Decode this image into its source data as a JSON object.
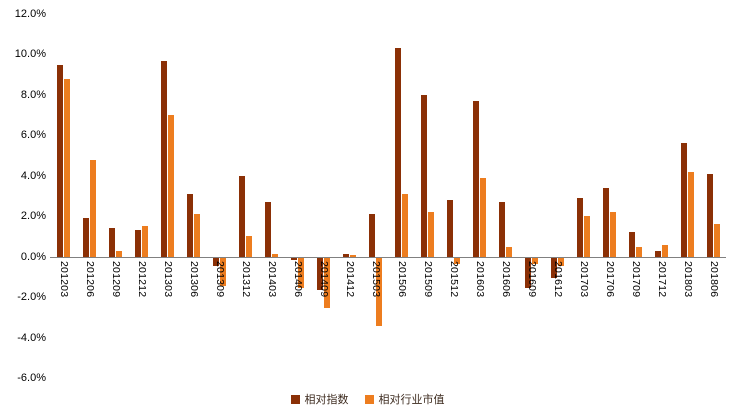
{
  "chart_data": {
    "type": "bar",
    "title": "",
    "xlabel": "",
    "ylabel": "",
    "ylim": [
      -6,
      12
    ],
    "ytick_step": 2,
    "ytick_suffix": "%",
    "grid": false,
    "legend_position": "bottom",
    "categories": [
      "201203",
      "201206",
      "201209",
      "201212",
      "201303",
      "201306",
      "201309",
      "201312",
      "201403",
      "201406",
      "201409",
      "201412",
      "201503",
      "201506",
      "201509",
      "201512",
      "201603",
      "201606",
      "201609",
      "201612",
      "201703",
      "201706",
      "201709",
      "201712",
      "201803",
      "201806"
    ],
    "series": [
      {
        "name": "相对指数",
        "color": "#8B3006",
        "values": [
          9.5,
          1.9,
          1.4,
          1.3,
          9.7,
          3.1,
          -0.4,
          4.0,
          2.7,
          -0.1,
          -1.6,
          0.15,
          2.1,
          10.3,
          8.0,
          2.8,
          7.7,
          2.7,
          -1.5,
          -1.0,
          2.9,
          3.4,
          1.2,
          0.3,
          5.6,
          4.1
        ]
      },
      {
        "name": "相对行业市值",
        "color": "#ED7D1F",
        "values": [
          8.8,
          4.8,
          0.3,
          1.5,
          7.0,
          2.1,
          -1.4,
          1.0,
          0.15,
          -1.5,
          -2.5,
          0.1,
          -3.4,
          3.1,
          2.2,
          -0.3,
          3.9,
          0.5,
          -0.3,
          -0.4,
          2.0,
          2.2,
          0.5,
          0.6,
          4.2,
          1.6
        ]
      }
    ]
  }
}
